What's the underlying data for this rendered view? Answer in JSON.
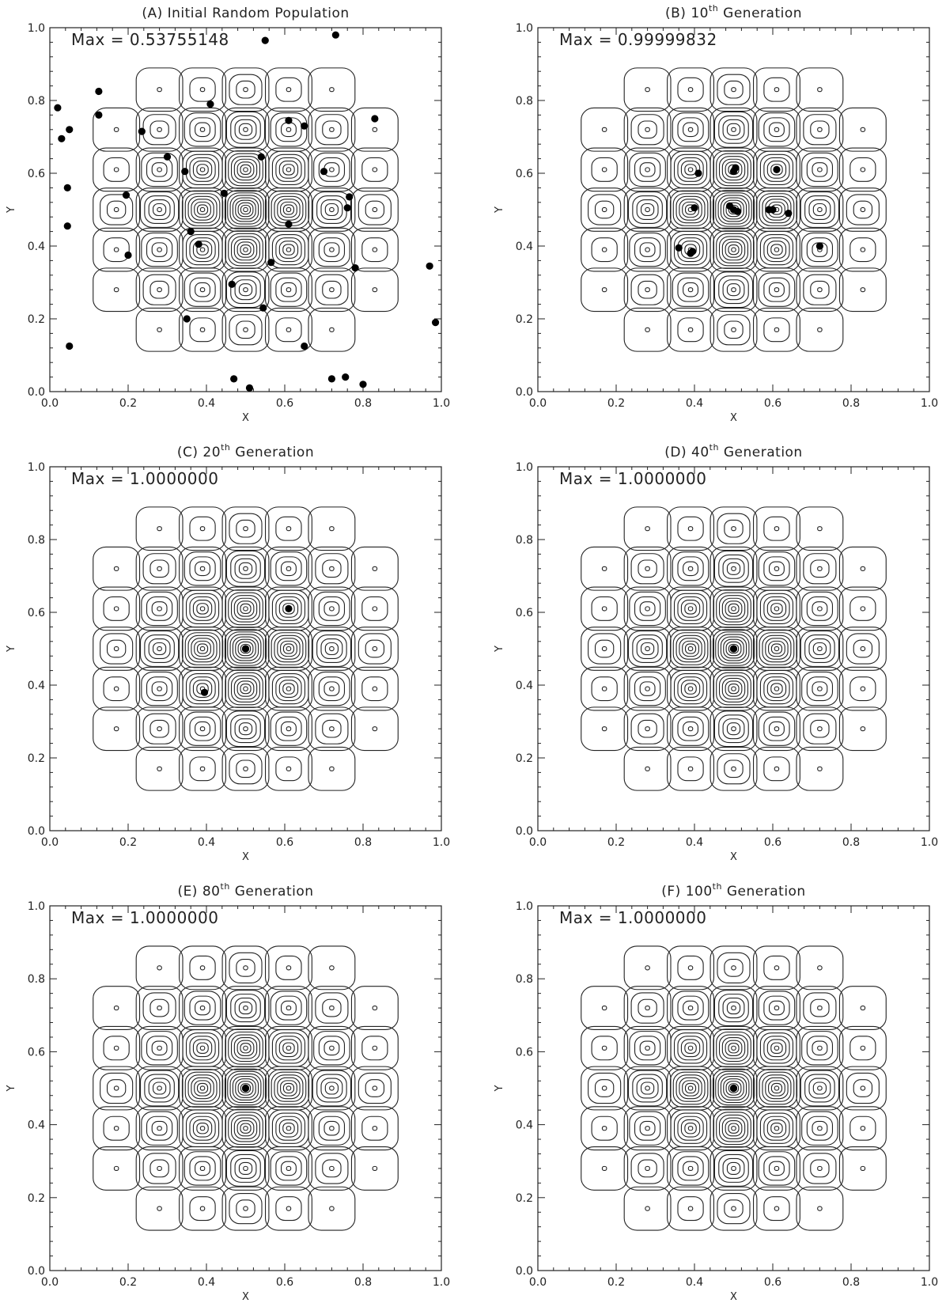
{
  "figure": {
    "panels": [
      {
        "letter": "(A)",
        "title": "Initial Random Population",
        "ord": "",
        "max_label": "Max  =  0.53755148"
      },
      {
        "letter": "(B)",
        "title": "Generation",
        "ord": "10",
        "max_label": "Max  =  0.99999832"
      },
      {
        "letter": "(C)",
        "title": "Generation",
        "ord": "20",
        "max_label": "Max  =  1.0000000"
      },
      {
        "letter": "(D)",
        "title": "Generation",
        "ord": "40",
        "max_label": "Max  =  1.0000000"
      },
      {
        "letter": "(E)",
        "title": "Generation",
        "ord": "80",
        "max_label": "Max  =  1.0000000"
      },
      {
        "letter": "(F)",
        "title": "Generation",
        "ord": "100",
        "max_label": "Max  =  1.0000000"
      }
    ],
    "ordinal_suffix": "th",
    "colors": {
      "line": "#222222",
      "point": "#000000",
      "background": "#ffffff"
    }
  },
  "chart_data": [
    {
      "type": "scatter",
      "title": "(A) Initial Random Population",
      "annotation": "Max = 0.53755148",
      "xlabel": "X",
      "ylabel": "Y",
      "xlim": [
        0,
        1
      ],
      "ylim": [
        0,
        1
      ],
      "xticks": [
        "0.0",
        "0.2",
        "0.4",
        "0.6",
        "0.8",
        "1.0"
      ],
      "yticks": [
        "0.0",
        "0.2",
        "0.4",
        "0.6",
        "0.8",
        "1.0"
      ],
      "background": "contour",
      "points": [
        [
          0.55,
          0.965
        ],
        [
          0.73,
          0.98
        ],
        [
          0.02,
          0.78
        ],
        [
          0.125,
          0.825
        ],
        [
          0.41,
          0.79
        ],
        [
          0.125,
          0.76
        ],
        [
          0.83,
          0.75
        ],
        [
          0.61,
          0.745
        ],
        [
          0.05,
          0.72
        ],
        [
          0.235,
          0.715
        ],
        [
          0.65,
          0.73
        ],
        [
          0.03,
          0.695
        ],
        [
          0.3,
          0.645
        ],
        [
          0.54,
          0.645
        ],
        [
          0.345,
          0.605
        ],
        [
          0.7,
          0.605
        ],
        [
          0.045,
          0.56
        ],
        [
          0.445,
          0.545
        ],
        [
          0.195,
          0.54
        ],
        [
          0.765,
          0.535
        ],
        [
          0.76,
          0.505
        ],
        [
          0.61,
          0.46
        ],
        [
          0.045,
          0.455
        ],
        [
          0.36,
          0.44
        ],
        [
          0.38,
          0.405
        ],
        [
          0.2,
          0.375
        ],
        [
          0.565,
          0.355
        ],
        [
          0.78,
          0.34
        ],
        [
          0.97,
          0.345
        ],
        [
          0.465,
          0.295
        ],
        [
          0.545,
          0.23
        ],
        [
          0.35,
          0.2
        ],
        [
          0.985,
          0.19
        ],
        [
          0.05,
          0.125
        ],
        [
          0.65,
          0.125
        ],
        [
          0.47,
          0.035
        ],
        [
          0.51,
          0.01
        ],
        [
          0.72,
          0.035
        ],
        [
          0.755,
          0.04
        ],
        [
          0.8,
          0.02
        ]
      ]
    },
    {
      "type": "scatter",
      "title": "(B) 10th Generation",
      "annotation": "Max = 0.99999832",
      "xlabel": "X",
      "ylabel": "Y",
      "xlim": [
        0,
        1
      ],
      "ylim": [
        0,
        1
      ],
      "xticks": [
        "0.0",
        "0.2",
        "0.4",
        "0.6",
        "0.8",
        "1.0"
      ],
      "yticks": [
        "0.0",
        "0.2",
        "0.4",
        "0.6",
        "0.8",
        "1.0"
      ],
      "background": "contour",
      "points": [
        [
          0.41,
          0.6
        ],
        [
          0.5,
          0.605
        ],
        [
          0.505,
          0.615
        ],
        [
          0.61,
          0.61
        ],
        [
          0.4,
          0.505
        ],
        [
          0.49,
          0.51
        ],
        [
          0.5,
          0.5
        ],
        [
          0.51,
          0.495
        ],
        [
          0.59,
          0.5
        ],
        [
          0.6,
          0.5
        ],
        [
          0.64,
          0.49
        ],
        [
          0.36,
          0.395
        ],
        [
          0.39,
          0.38
        ],
        [
          0.395,
          0.385
        ],
        [
          0.72,
          0.4
        ]
      ]
    },
    {
      "type": "scatter",
      "title": "(C) 20th Generation",
      "annotation": "Max = 1.0000000",
      "xlabel": "X",
      "ylabel": "Y",
      "xlim": [
        0,
        1
      ],
      "ylim": [
        0,
        1
      ],
      "xticks": [
        "0.0",
        "0.2",
        "0.4",
        "0.6",
        "0.8",
        "1.0"
      ],
      "yticks": [
        "0.0",
        "0.2",
        "0.4",
        "0.6",
        "0.8",
        "1.0"
      ],
      "background": "contour",
      "points": [
        [
          0.61,
          0.61
        ],
        [
          0.5,
          0.5
        ],
        [
          0.5,
          0.5
        ],
        [
          0.395,
          0.38
        ]
      ]
    },
    {
      "type": "scatter",
      "title": "(D) 40th Generation",
      "annotation": "Max = 1.0000000",
      "xlabel": "X",
      "ylabel": "Y",
      "xlim": [
        0,
        1
      ],
      "ylim": [
        0,
        1
      ],
      "xticks": [
        "0.0",
        "0.2",
        "0.4",
        "0.6",
        "0.8",
        "1.0"
      ],
      "yticks": [
        "0.0",
        "0.2",
        "0.4",
        "0.6",
        "0.8",
        "1.0"
      ],
      "background": "contour",
      "points": [
        [
          0.5,
          0.5
        ],
        [
          0.5,
          0.5
        ]
      ]
    },
    {
      "type": "scatter",
      "title": "(E) 80th Generation",
      "annotation": "Max = 1.0000000",
      "xlabel": "X",
      "ylabel": "Y",
      "xlim": [
        0,
        1
      ],
      "ylim": [
        0,
        1
      ],
      "xticks": [
        "0.0",
        "0.2",
        "0.4",
        "0.6",
        "0.8",
        "1.0"
      ],
      "yticks": [
        "0.0",
        "0.2",
        "0.4",
        "0.6",
        "0.8",
        "1.0"
      ],
      "background": "contour",
      "points": [
        [
          0.5,
          0.5
        ],
        [
          0.5,
          0.5
        ]
      ]
    },
    {
      "type": "scatter",
      "title": "(F) 100th Generation",
      "annotation": "Max = 1.0000000",
      "xlabel": "X",
      "ylabel": "Y",
      "xlim": [
        0,
        1
      ],
      "ylim": [
        0,
        1
      ],
      "xticks": [
        "0.0",
        "0.2",
        "0.4",
        "0.6",
        "0.8",
        "1.0"
      ],
      "yticks": [
        "0.0",
        "0.2",
        "0.4",
        "0.6",
        "0.8",
        "1.0"
      ],
      "background": "contour",
      "points": [
        [
          0.5,
          0.5
        ],
        [
          0.5,
          0.5
        ]
      ]
    }
  ]
}
